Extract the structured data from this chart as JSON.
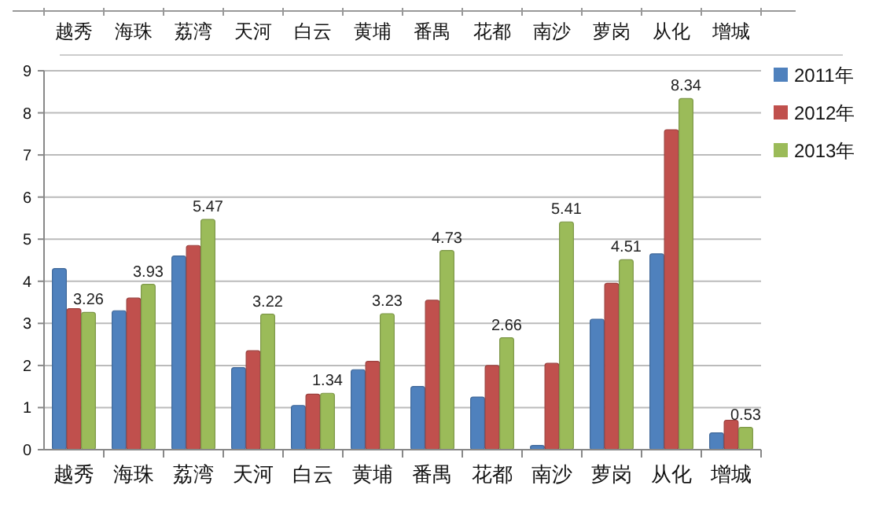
{
  "chart_data": {
    "type": "bar",
    "categories": [
      "越秀",
      "海珠",
      "荔湾",
      "天河",
      "白云",
      "黄埔",
      "番禺",
      "花都",
      "南沙",
      "萝岗",
      "从化",
      "增城"
    ],
    "series": [
      {
        "name": "2011年",
        "color": "#4f81bd",
        "values": [
          4.3,
          3.3,
          4.6,
          1.95,
          1.05,
          1.9,
          1.5,
          1.25,
          0.1,
          3.1,
          4.65,
          0.4
        ]
      },
      {
        "name": "2012年",
        "color": "#c0504d",
        "values": [
          3.35,
          3.6,
          4.85,
          2.35,
          1.32,
          2.1,
          3.55,
          2.0,
          2.05,
          3.95,
          7.6,
          0.7
        ]
      },
      {
        "name": "2013年",
        "color": "#9bbb59",
        "values": [
          3.26,
          3.93,
          5.47,
          3.22,
          1.34,
          3.23,
          4.73,
          2.66,
          5.41,
          4.51,
          8.34,
          0.53
        ],
        "value_labels": [
          "3.26",
          "3.93",
          "5.47",
          "3.22",
          "1.34",
          "3.23",
          "4.73",
          "2.66",
          "5.41",
          "4.51",
          "8.34",
          "0.53"
        ]
      }
    ],
    "ylim": [
      0,
      9
    ],
    "yticks": [
      0,
      1,
      2,
      3,
      4,
      5,
      6,
      7,
      8,
      9
    ],
    "grid": "y",
    "legend": "top right"
  }
}
